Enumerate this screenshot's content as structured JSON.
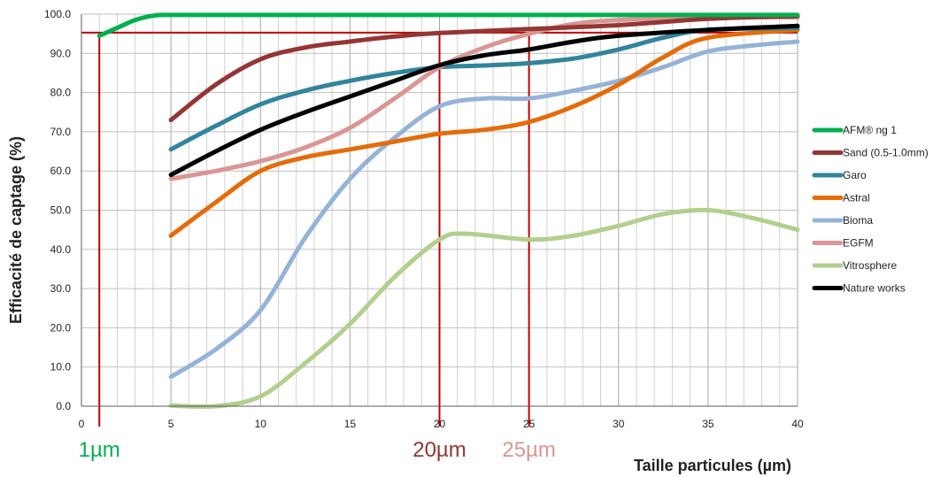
{
  "chart_data": {
    "type": "line",
    "title": "",
    "xlabel": "Taille particules (µm)",
    "ylabel": "Efficacité de captage (%)",
    "xlim": [
      0,
      40
    ],
    "ylim": [
      0,
      100
    ],
    "x_ticks": [
      0,
      5,
      10,
      15,
      20,
      25,
      30,
      35,
      40
    ],
    "y_ticks": [
      "0.0",
      "10.0",
      "20.0",
      "30.0",
      "40.0",
      "50.0",
      "60.0",
      "70.0",
      "80.0",
      "90.0",
      "100.0"
    ],
    "grid": true,
    "legend_position": "right",
    "series": [
      {
        "name": "AFM® ng 1",
        "color": "#00b050",
        "x": [
          1,
          2,
          3,
          4,
          5,
          10,
          20,
          30,
          40
        ],
        "y": [
          94.5,
          96.5,
          98.5,
          99.6,
          99.8,
          99.8,
          99.8,
          99.8,
          99.8
        ]
      },
      {
        "name": "Sand (0.5-1.0mm)",
        "color": "#943634",
        "x": [
          5,
          7.5,
          10,
          12.5,
          15,
          17.5,
          20,
          25,
          30,
          35,
          40
        ],
        "y": [
          73,
          82,
          88.5,
          91.5,
          93,
          94.3,
          95.2,
          96.2,
          97.2,
          98.8,
          99.5
        ]
      },
      {
        "name": "Garo",
        "color": "#31849b",
        "x": [
          5,
          7.5,
          10,
          12.5,
          15,
          17.5,
          20,
          22.5,
          25,
          27.5,
          30,
          32.5,
          35,
          40
        ],
        "y": [
          65.5,
          71.5,
          77,
          80.5,
          83,
          85,
          86.5,
          86.9,
          87.5,
          88.7,
          91,
          94,
          96,
          96.5
        ]
      },
      {
        "name": "Astral",
        "color": "#e46c0a",
        "x": [
          5,
          7.5,
          10,
          12.5,
          15,
          17.5,
          20,
          22.5,
          25,
          27.5,
          30,
          32.5,
          35,
          40
        ],
        "y": [
          43.5,
          52,
          60,
          63.5,
          65.5,
          67.5,
          69.5,
          70.5,
          72.5,
          76.5,
          82,
          89,
          94,
          96
        ]
      },
      {
        "name": "Bioma",
        "color": "#95b3d7",
        "x": [
          5,
          7.5,
          10,
          12.5,
          15,
          17.5,
          20,
          22.5,
          25,
          27.5,
          30,
          32.5,
          35,
          37.5,
          40
        ],
        "y": [
          7.5,
          14.5,
          24.5,
          43,
          58,
          68.5,
          76.5,
          78.5,
          78.5,
          80.5,
          83,
          86.5,
          90.5,
          92,
          93
        ]
      },
      {
        "name": "EGFM",
        "color": "#d99694",
        "x": [
          5,
          7.5,
          10,
          12.5,
          15,
          17.5,
          20,
          22.5,
          25,
          27.5,
          30,
          35,
          40
        ],
        "y": [
          58,
          60,
          62.5,
          66,
          71,
          78.5,
          86.5,
          91.5,
          95,
          97.5,
          98.5,
          99.2,
          99.2
        ]
      },
      {
        "name": "Vitrosphere",
        "color": "#b2cf8e",
        "x": [
          5,
          7.5,
          10,
          12.5,
          15,
          17.5,
          20,
          21.5,
          25,
          27.5,
          30,
          32.5,
          35,
          37.5,
          40
        ],
        "y": [
          0.2,
          0,
          2.5,
          11,
          21,
          33,
          42.5,
          44,
          42.5,
          43.5,
          46,
          49,
          50,
          48,
          45
        ]
      },
      {
        "name": "Nature works",
        "color": "#000000",
        "x": [
          5,
          7.5,
          10,
          12.5,
          15,
          17.5,
          20,
          22.5,
          25,
          27.5,
          30,
          35,
          40
        ],
        "y": [
          59,
          65,
          70.5,
          75,
          79,
          83,
          87,
          89.5,
          91,
          93,
          94.5,
          96,
          97
        ]
      }
    ],
    "reference_lines": [
      {
        "axis": "y",
        "value": 95.3,
        "color": "#c00000"
      },
      {
        "axis": "x",
        "value": 1,
        "color": "#c00000"
      },
      {
        "axis": "x",
        "value": 20,
        "color": "#c00000"
      },
      {
        "axis": "x",
        "value": 25,
        "color": "#c00000"
      }
    ],
    "annotations": [
      {
        "text": "1µm",
        "x": 1,
        "color": "#00b050"
      },
      {
        "text": "20µm",
        "x": 20,
        "color": "#943634"
      },
      {
        "text": "25µm",
        "x": 25,
        "color": "#d99694"
      }
    ]
  }
}
